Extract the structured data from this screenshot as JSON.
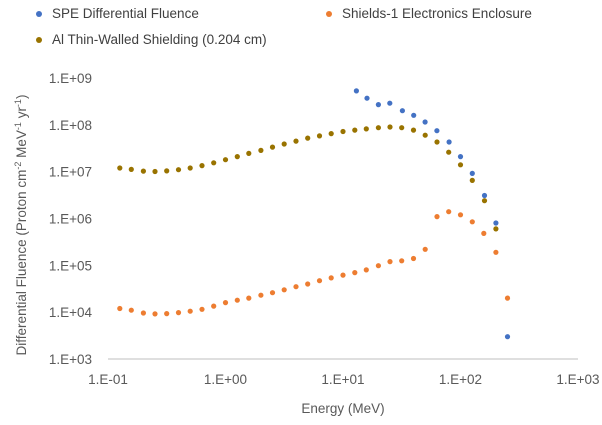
{
  "chart_data": {
    "type": "scatter",
    "title": "",
    "xlabel": "Energy (MeV)",
    "ylabel": "Differential Fluence (Proton cm",
    "ylabel_sup1": "-2",
    "ylabel_mid": " MeV",
    "ylabel_sup2": "-1",
    "ylabel_mid2": " yr",
    "ylabel_sup3": "-1",
    "ylabel_end": ")",
    "x_scale": "log",
    "y_scale": "log",
    "xlim": [
      0.1,
      1000
    ],
    "ylim": [
      1000,
      1000000000
    ],
    "x_ticks": [
      "1.E-01",
      "1.E+00",
      "1.E+01",
      "1.E+02",
      "1.E+03"
    ],
    "y_ticks": [
      "1.E+03",
      "1.E+04",
      "1.E+05",
      "1.E+06",
      "1.E+07",
      "1.E+08",
      "1.E+09"
    ],
    "grid": false,
    "legend_position": "top",
    "series": [
      {
        "name": "SPE Differential Fluence",
        "color": "#4472C4",
        "points": [
          [
            13,
            530000000
          ],
          [
            16,
            370000000
          ],
          [
            20,
            270000000
          ],
          [
            25,
            290000000
          ],
          [
            32,
            200000000
          ],
          [
            40,
            160000000
          ],
          [
            50,
            115000000
          ],
          [
            63,
            75000000
          ],
          [
            80,
            43000000
          ],
          [
            100,
            21000000
          ],
          [
            126,
            9200000
          ],
          [
            160,
            3100000
          ],
          [
            200,
            800000
          ],
          [
            251,
            3000
          ]
        ]
      },
      {
        "name": "Shields-1 Electronics Enclosure",
        "color": "#ED7D31",
        "points": [
          [
            0.126,
            12000
          ],
          [
            0.158,
            11000
          ],
          [
            0.2,
            9600
          ],
          [
            0.251,
            9200
          ],
          [
            0.316,
            9300
          ],
          [
            0.398,
            9800
          ],
          [
            0.501,
            10500
          ],
          [
            0.631,
            11500
          ],
          [
            0.794,
            13500
          ],
          [
            1.0,
            16000
          ],
          [
            1.26,
            18000
          ],
          [
            1.58,
            20000
          ],
          [
            2.0,
            23000
          ],
          [
            2.51,
            26000
          ],
          [
            3.16,
            30000
          ],
          [
            3.98,
            35000
          ],
          [
            5.01,
            40000
          ],
          [
            6.31,
            47000
          ],
          [
            7.94,
            54000
          ],
          [
            10,
            62000
          ],
          [
            12.6,
            70000
          ],
          [
            15.8,
            80000
          ],
          [
            20,
            98000
          ],
          [
            25.1,
            120000
          ],
          [
            31.6,
            125000
          ],
          [
            39.8,
            140000
          ],
          [
            50.1,
            220000
          ],
          [
            63.1,
            1100000
          ],
          [
            79.4,
            1400000
          ],
          [
            100,
            1200000
          ],
          [
            126,
            850000
          ],
          [
            158,
            480000
          ],
          [
            200,
            190000
          ],
          [
            251,
            20000
          ]
        ]
      },
      {
        "name": "Al Thin-Walled Shielding (0.204 cm)",
        "color": "#997300",
        "points": [
          [
            0.126,
            12000000
          ],
          [
            0.158,
            11200000
          ],
          [
            0.2,
            10300000
          ],
          [
            0.251,
            10100000
          ],
          [
            0.316,
            10400000
          ],
          [
            0.398,
            11000000
          ],
          [
            0.501,
            12000000
          ],
          [
            0.631,
            13500000
          ],
          [
            0.794,
            15500000
          ],
          [
            1.0,
            18000000
          ],
          [
            1.26,
            21000000
          ],
          [
            1.58,
            24500000
          ],
          [
            2.0,
            28500000
          ],
          [
            2.51,
            33500000
          ],
          [
            3.16,
            39000000
          ],
          [
            3.98,
            45000000
          ],
          [
            5.01,
            52000000
          ],
          [
            6.31,
            58000000
          ],
          [
            7.94,
            65000000
          ],
          [
            10,
            72000000
          ],
          [
            12.6,
            77000000
          ],
          [
            15.8,
            82000000
          ],
          [
            20,
            87000000
          ],
          [
            25.1,
            90000000
          ],
          [
            31.6,
            87000000
          ],
          [
            39.8,
            77000000
          ],
          [
            50.1,
            60000000
          ],
          [
            63.1,
            43000000
          ],
          [
            79.4,
            26000000
          ],
          [
            100,
            14000000
          ],
          [
            126,
            6500000
          ],
          [
            160,
            2400000
          ],
          [
            200,
            600000
          ]
        ]
      }
    ]
  }
}
